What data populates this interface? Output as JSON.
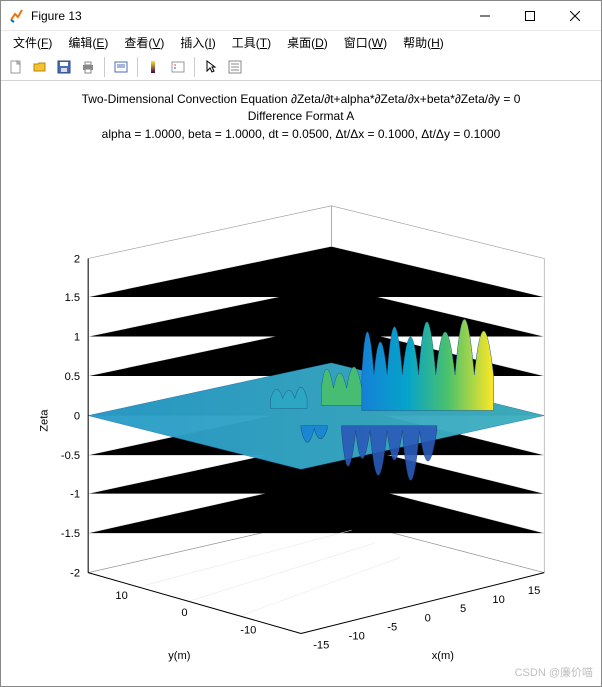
{
  "window": {
    "title": "Figure 13"
  },
  "menus": [
    {
      "label": "文件",
      "mn": "F"
    },
    {
      "label": "编辑",
      "mn": "E"
    },
    {
      "label": "查看",
      "mn": "V"
    },
    {
      "label": "插入",
      "mn": "I"
    },
    {
      "label": "工具",
      "mn": "T"
    },
    {
      "label": "桌面",
      "mn": "D"
    },
    {
      "label": "窗口",
      "mn": "W"
    },
    {
      "label": "帮助",
      "mn": "H"
    }
  ],
  "plot": {
    "type": "surf3d",
    "title_lines": [
      "Two-Dimensional Convection Equation ∂Zeta/∂t+alpha*∂Zeta/∂x+beta*∂Zeta/∂y = 0",
      "Difference Format A",
      "alpha = 1.0000, beta = 1.0000, dt = 0.0500, Δt/Δx = 0.1000, Δt/Δy = 0.1000"
    ],
    "xlabel": "x(m)",
    "ylabel": "y(m)",
    "zlabel": "Zeta",
    "xlim": [
      -15,
      15
    ],
    "xticks": [
      -15,
      -10,
      -5,
      0,
      5,
      10,
      15
    ],
    "ylim": [
      -15,
      15
    ],
    "yticks": [
      -10,
      0,
      10
    ],
    "zlim": [
      -2,
      2
    ],
    "zticks": [
      -2,
      -1.5,
      -1,
      -0.5,
      0,
      0.5,
      1,
      1.5,
      2
    ],
    "colormap": {
      "low": "#352a87",
      "mid1": "#1481d6",
      "mid2": "#06a4ca",
      "mid3": "#4ac16d",
      "high": "#fde725"
    },
    "background_color": "#ffffff",
    "axes_edge_color": "#000000",
    "grid_color": "#d9d9d9",
    "title_fontsize": 12,
    "label_fontsize": 11,
    "tick_fontsize": 11,
    "azimuth": -37.5,
    "elevation": 30
  },
  "watermark": "CSDN @廉价喵"
}
